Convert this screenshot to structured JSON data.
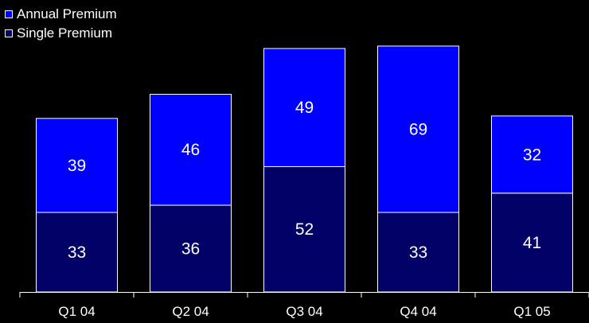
{
  "chart_data": {
    "type": "bar",
    "stacked": true,
    "categories": [
      "Q1 04",
      "Q2 04",
      "Q3 04",
      "Q4 04",
      "Q1 05"
    ],
    "series": [
      {
        "name": "Single Premium",
        "values": [
          33,
          36,
          52,
          33,
          41
        ],
        "color": "#000066"
      },
      {
        "name": "Annual Premium",
        "values": [
          39,
          46,
          49,
          69,
          32
        ],
        "color": "#0000ff"
      }
    ],
    "legend_position": "top-left",
    "grid": false,
    "ylim": [
      0,
      102
    ]
  },
  "background": "#000000",
  "text_color": "#ffffff"
}
